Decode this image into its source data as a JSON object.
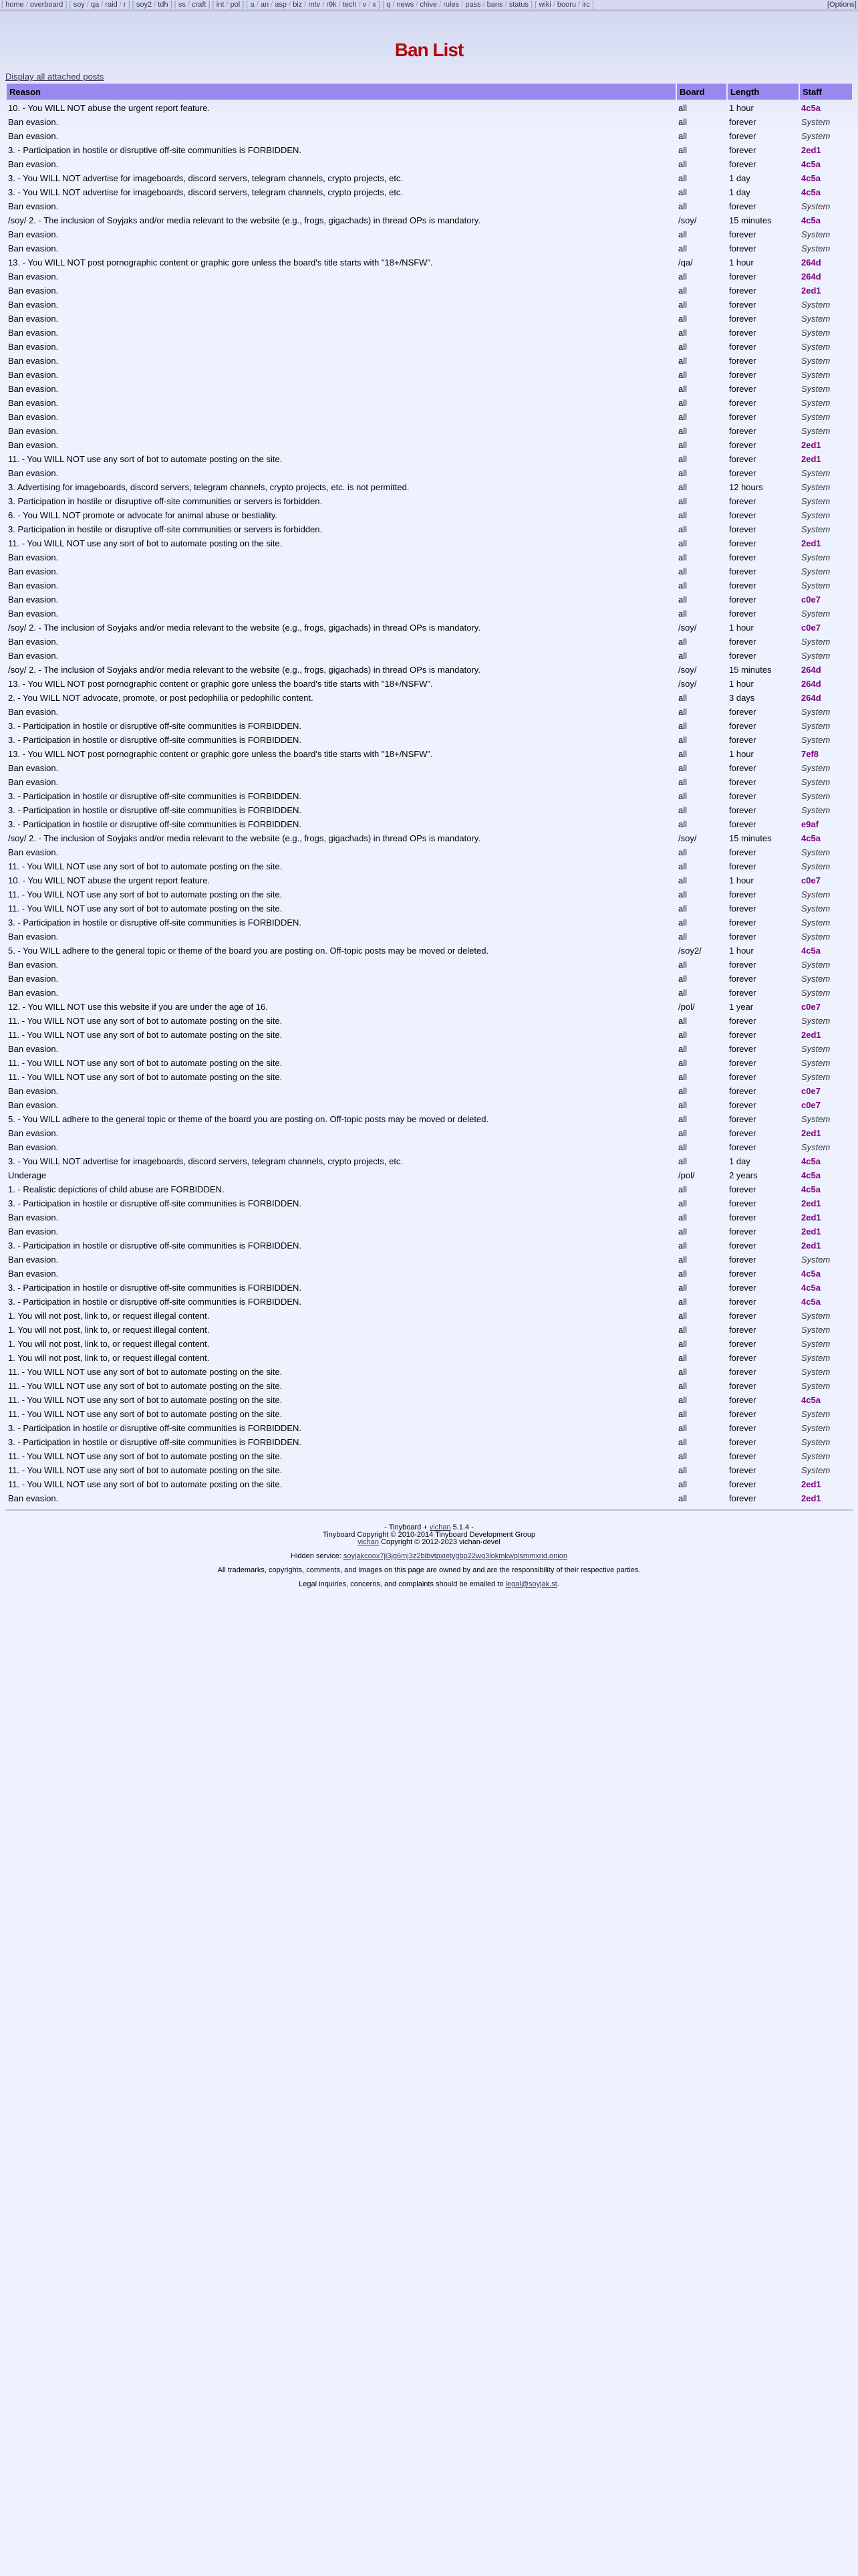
{
  "nav": {
    "groups": [
      [
        "home",
        "overboard"
      ],
      [
        "soy",
        "qa",
        "raid",
        "r"
      ],
      [
        "soy2",
        "tdh"
      ],
      [
        "ss",
        "craft"
      ],
      [
        "int",
        "pol"
      ],
      [
        "a",
        "an",
        "asp",
        "biz",
        "mtv",
        "r9k",
        "tech",
        "v",
        "x"
      ],
      [
        "q",
        "news",
        "chive",
        "rules",
        "pass",
        "bans",
        "status"
      ],
      [
        "wiki",
        "booru",
        "irc"
      ]
    ],
    "options": "[Options]"
  },
  "title": "Ban List",
  "show_all_link": "Display all attached posts",
  "table": {
    "headers": [
      "Reason",
      "Board",
      "Length",
      "Staff"
    ],
    "rows": [
      [
        "10. - You WILL NOT abuse the urgent report feature.",
        "all",
        "1 hour",
        "4c5a"
      ],
      [
        "Ban evasion.",
        "all",
        "forever",
        "System"
      ],
      [
        "Ban evasion.",
        "all",
        "forever",
        "System"
      ],
      [
        "3. - Participation in hostile or disruptive off-site communities is FORBIDDEN.",
        "all",
        "forever",
        "2ed1"
      ],
      [
        "Ban evasion.",
        "all",
        "forever",
        "4c5a"
      ],
      [
        "3. - You WILL NOT advertise for imageboards, discord servers, telegram channels, crypto projects, etc.",
        "all",
        "1 day",
        "4c5a"
      ],
      [
        "3. - You WILL NOT advertise for imageboards, discord servers, telegram channels, crypto projects, etc.",
        "all",
        "1 day",
        "4c5a"
      ],
      [
        "Ban evasion.",
        "all",
        "forever",
        "System"
      ],
      [
        "/soy/ 2. - The inclusion of Soyjaks and/or media relevant to the website (e.g., frogs, gigachads) in thread OPs is mandatory.",
        "/soy/",
        "15 minutes",
        "4c5a"
      ],
      [
        "Ban evasion.",
        "all",
        "forever",
        "System"
      ],
      [
        "Ban evasion.",
        "all",
        "forever",
        "System"
      ],
      [
        "13. - You WILL NOT post pornographic content or graphic gore unless the board's title starts with \"18+/NSFW\".",
        "/qa/",
        "1 hour",
        "264d"
      ],
      [
        "Ban evasion.",
        "all",
        "forever",
        "264d"
      ],
      [
        "Ban evasion.",
        "all",
        "forever",
        "2ed1"
      ],
      [
        "Ban evasion.",
        "all",
        "forever",
        "System"
      ],
      [
        "Ban evasion.",
        "all",
        "forever",
        "System"
      ],
      [
        "Ban evasion.",
        "all",
        "forever",
        "System"
      ],
      [
        "Ban evasion.",
        "all",
        "forever",
        "System"
      ],
      [
        "Ban evasion.",
        "all",
        "forever",
        "System"
      ],
      [
        "Ban evasion.",
        "all",
        "forever",
        "System"
      ],
      [
        "Ban evasion.",
        "all",
        "forever",
        "System"
      ],
      [
        "Ban evasion.",
        "all",
        "forever",
        "System"
      ],
      [
        "Ban evasion.",
        "all",
        "forever",
        "System"
      ],
      [
        "Ban evasion.",
        "all",
        "forever",
        "System"
      ],
      [
        "Ban evasion.",
        "all",
        "forever",
        "2ed1"
      ],
      [
        "11. - You WILL NOT use any sort of bot to automate posting on the site.",
        "all",
        "forever",
        "2ed1"
      ],
      [
        "Ban evasion.",
        "all",
        "forever",
        "System"
      ],
      [
        "3. Advertising for imageboards, discord servers, telegram channels, crypto projects, etc. is not permitted.",
        "all",
        "12 hours",
        "System"
      ],
      [
        "3. Participation in hostile or disruptive off-site communities or servers is forbidden.",
        "all",
        "forever",
        "System"
      ],
      [
        "6. - You WILL NOT promote or advocate for animal abuse or bestiality.",
        "all",
        "forever",
        "System"
      ],
      [
        "3. Participation in hostile or disruptive off-site communities or servers is forbidden.",
        "all",
        "forever",
        "System"
      ],
      [
        "11. - You WILL NOT use any sort of bot to automate posting on the site.",
        "all",
        "forever",
        "2ed1"
      ],
      [
        "Ban evasion.",
        "all",
        "forever",
        "System"
      ],
      [
        "Ban evasion.",
        "all",
        "forever",
        "System"
      ],
      [
        "Ban evasion.",
        "all",
        "forever",
        "System"
      ],
      [
        "Ban evasion.",
        "all",
        "forever",
        "c0e7"
      ],
      [
        "Ban evasion.",
        "all",
        "forever",
        "System"
      ],
      [
        "/soy/ 2. - The inclusion of Soyjaks and/or media relevant to the website (e.g., frogs, gigachads) in thread OPs is mandatory.",
        "/soy/",
        "1 hour",
        "c0e7"
      ],
      [
        "Ban evasion.",
        "all",
        "forever",
        "System"
      ],
      [
        "Ban evasion.",
        "all",
        "forever",
        "System"
      ],
      [
        "/soy/ 2. - The inclusion of Soyjaks and/or media relevant to the website (e.g., frogs, gigachads) in thread OPs is mandatory.",
        "/soy/",
        "15 minutes",
        "264d"
      ],
      [
        "13. - You WILL NOT post pornographic content or graphic gore unless the board's title starts with \"18+/NSFW\".",
        "/soy/",
        "1 hour",
        "264d"
      ],
      [
        "2. - You WILL NOT advocate, promote, or post pedophilia or pedophilic content.",
        "all",
        "3 days",
        "264d"
      ],
      [
        "Ban evasion.",
        "all",
        "forever",
        "System"
      ],
      [
        "3. - Participation in hostile or disruptive off-site communities is FORBIDDEN.",
        "all",
        "forever",
        "System"
      ],
      [
        "3. - Participation in hostile or disruptive off-site communities is FORBIDDEN.",
        "all",
        "forever",
        "System"
      ],
      [
        "13. - You WILL NOT post pornographic content or graphic gore unless the board's title starts with \"18+/NSFW\".",
        "all",
        "1 hour",
        "7ef8"
      ],
      [
        "Ban evasion.",
        "all",
        "forever",
        "System"
      ],
      [
        "Ban evasion.",
        "all",
        "forever",
        "System"
      ],
      [
        "3. - Participation in hostile or disruptive off-site communities is FORBIDDEN.",
        "all",
        "forever",
        "System"
      ],
      [
        "3. - Participation in hostile or disruptive off-site communities is FORBIDDEN.",
        "all",
        "forever",
        "System"
      ],
      [
        "3. - Participation in hostile or disruptive off-site communities is FORBIDDEN.",
        "all",
        "forever",
        "e9af"
      ],
      [
        "/soy/ 2. - The inclusion of Soyjaks and/or media relevant to the website (e.g., frogs, gigachads) in thread OPs is mandatory.",
        "/soy/",
        "15 minutes",
        "4c5a"
      ],
      [
        "Ban evasion.",
        "all",
        "forever",
        "System"
      ],
      [
        "11. - You WILL NOT use any sort of bot to automate posting on the site.",
        "all",
        "forever",
        "System"
      ],
      [
        "10. - You WILL NOT abuse the urgent report feature.",
        "all",
        "1 hour",
        "c0e7"
      ],
      [
        "11. - You WILL NOT use any sort of bot to automate posting on the site.",
        "all",
        "forever",
        "System"
      ],
      [
        "11. - You WILL NOT use any sort of bot to automate posting on the site.",
        "all",
        "forever",
        "System"
      ],
      [
        "3. - Participation in hostile or disruptive off-site communities is FORBIDDEN.",
        "all",
        "forever",
        "System"
      ],
      [
        "Ban evasion.",
        "all",
        "forever",
        "System"
      ],
      [
        "5. - You WILL adhere to the general topic or theme of the board you are posting on. Off-topic posts may be moved or deleted.",
        "/soy2/",
        "1 hour",
        "4c5a"
      ],
      [
        "Ban evasion.",
        "all",
        "forever",
        "System"
      ],
      [
        "Ban evasion.",
        "all",
        "forever",
        "System"
      ],
      [
        "Ban evasion.",
        "all",
        "forever",
        "System"
      ],
      [
        "12. - You WILL NOT use this website if you are under the age of 16.",
        "/pol/",
        "1 year",
        "c0e7"
      ],
      [
        "11. - You WILL NOT use any sort of bot to automate posting on the site.",
        "all",
        "forever",
        "System"
      ],
      [
        "11. - You WILL NOT use any sort of bot to automate posting on the site.",
        "all",
        "forever",
        "2ed1"
      ],
      [
        "Ban evasion.",
        "all",
        "forever",
        "System"
      ],
      [
        "11. - You WILL NOT use any sort of bot to automate posting on the site.",
        "all",
        "forever",
        "System"
      ],
      [
        "11. - You WILL NOT use any sort of bot to automate posting on the site.",
        "all",
        "forever",
        "System"
      ],
      [
        "Ban evasion.",
        "all",
        "forever",
        "c0e7"
      ],
      [
        "Ban evasion.",
        "all",
        "forever",
        "c0e7"
      ],
      [
        "5. - You WILL adhere to the general topic or theme of the board you are posting on. Off-topic posts may be moved or deleted.",
        "all",
        "forever",
        "System"
      ],
      [
        "Ban evasion.",
        "all",
        "forever",
        "2ed1"
      ],
      [
        "Ban evasion.",
        "all",
        "forever",
        "System"
      ],
      [
        "3. - You WILL NOT advertise for imageboards, discord servers, telegram channels, crypto projects, etc.",
        "all",
        "1 day",
        "4c5a"
      ],
      [
        "Underage",
        "/pol/",
        "2 years",
        "4c5a"
      ],
      [
        "1. - Realistic depictions of child abuse are FORBIDDEN.",
        "all",
        "forever",
        "4c5a"
      ],
      [
        "3. - Participation in hostile or disruptive off-site communities is FORBIDDEN.",
        "all",
        "forever",
        "2ed1"
      ],
      [
        "Ban evasion.",
        "all",
        "forever",
        "2ed1"
      ],
      [
        "Ban evasion.",
        "all",
        "forever",
        "2ed1"
      ],
      [
        "3. - Participation in hostile or disruptive off-site communities is FORBIDDEN.",
        "all",
        "forever",
        "2ed1"
      ],
      [
        "Ban evasion.",
        "all",
        "forever",
        "System"
      ],
      [
        "Ban evasion.",
        "all",
        "forever",
        "4c5a"
      ],
      [
        "3. - Participation in hostile or disruptive off-site communities is FORBIDDEN.",
        "all",
        "forever",
        "4c5a"
      ],
      [
        "3. - Participation in hostile or disruptive off-site communities is FORBIDDEN.",
        "all",
        "forever",
        "4c5a"
      ],
      [
        "1. You will not post, link to, or request illegal content.",
        "all",
        "forever",
        "System"
      ],
      [
        "1. You will not post, link to, or request illegal content.",
        "all",
        "forever",
        "System"
      ],
      [
        "1. You will not post, link to, or request illegal content.",
        "all",
        "forever",
        "System"
      ],
      [
        "1. You will not post, link to, or request illegal content.",
        "all",
        "forever",
        "System"
      ],
      [
        "11. - You WILL NOT use any sort of bot to automate posting on the site.",
        "all",
        "forever",
        "System"
      ],
      [
        "11. - You WILL NOT use any sort of bot to automate posting on the site.",
        "all",
        "forever",
        "System"
      ],
      [
        "11. - You WILL NOT use any sort of bot to automate posting on the site.",
        "all",
        "forever",
        "4c5a"
      ],
      [
        "11. - You WILL NOT use any sort of bot to automate posting on the site.",
        "all",
        "forever",
        "System"
      ],
      [
        "3. - Participation in hostile or disruptive off-site communities is FORBIDDEN.",
        "all",
        "forever",
        "System"
      ],
      [
        "3. - Participation in hostile or disruptive off-site communities is FORBIDDEN.",
        "all",
        "forever",
        "System"
      ],
      [
        "11. - You WILL NOT use any sort of bot to automate posting on the site.",
        "all",
        "forever",
        "System"
      ],
      [
        "11. - You WILL NOT use any sort of bot to automate posting on the site.",
        "all",
        "forever",
        "System"
      ],
      [
        "11. - You WILL NOT use any sort of bot to automate posting on the site.",
        "all",
        "forever",
        "2ed1"
      ],
      [
        "Ban evasion.",
        "all",
        "forever",
        "2ed1"
      ]
    ]
  },
  "footer": {
    "line1_pre": "- Tinyboard + ",
    "line1_link": "vichan",
    "line1_post": " 5.1.4 -",
    "line2": "Tinyboard Copyright © 2010-2014 Tinyboard Development Group",
    "line3_link": "vichan",
    "line3_post": " Copyright © 2012-2023 vichan-devel",
    "hidden_label": "Hidden service: ",
    "hidden_link": "soyjakcoox7ji3jg6mj3z2bibvtpxietygbp22wq3lokmkwplsmmxrid.onion",
    "trademarks": "All trademarks, copyrights, comments, and images on this page are owned by and are the responsibility of their respective parties.",
    "legal_pre": "Legal inquiries, concerns, and complaints should be emailed to ",
    "legal_link": "legal@soyjak.st",
    "legal_post": "."
  },
  "colors": {
    "header_bg": "#9988ee",
    "title": "#af0a0f",
    "staff_mod": "#800080"
  }
}
